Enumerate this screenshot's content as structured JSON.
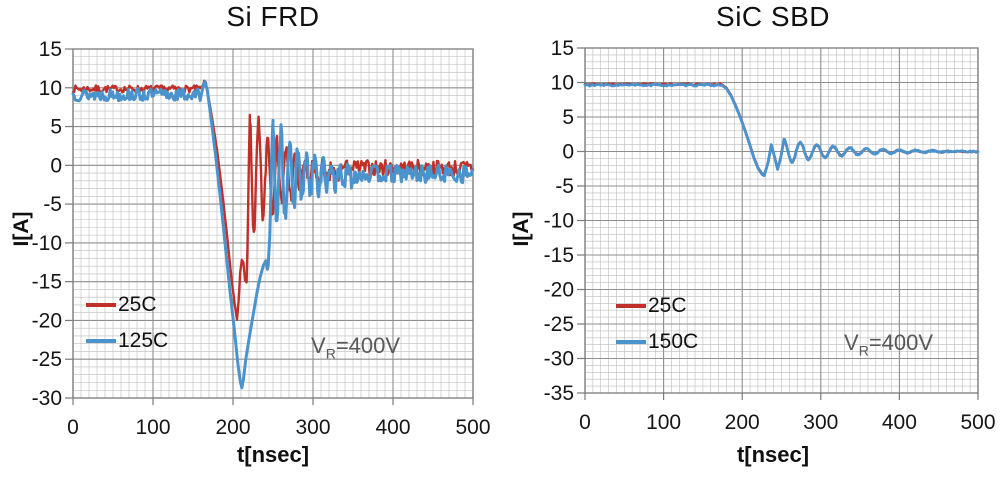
{
  "chart_data": [
    {
      "type": "line",
      "title": "Si FRD",
      "xlabel": "t[nsec]",
      "ylabel": "I[A]",
      "xlim": [
        0,
        500
      ],
      "ylim": [
        -30,
        15
      ],
      "xticks": [
        0,
        100,
        200,
        300,
        400,
        500
      ],
      "yticks": [
        15,
        10,
        5,
        0,
        -5,
        -10,
        -15,
        -20,
        -25,
        -30
      ],
      "minor_step": {
        "x": 10,
        "y": 1
      },
      "grid": true,
      "legend_position": "inside-lower-left",
      "annotation": {
        "pre": "V",
        "sub": "R",
        "post": "=400V"
      },
      "colors": {
        "minor_grid": "#bcbcbc",
        "major_grid": "#8e8e8e",
        "border": "#7a7a7a",
        "annotation": "#595959"
      },
      "readings": {
        "forward_current_A": 10,
        "peak_reverse_current_25C_A": -20,
        "peak_reverse_current_125C_A": -28.7,
        "current_fall_start_ns": 165
      },
      "series": [
        {
          "name": "25C",
          "color": "#c0302a",
          "width": 2.4,
          "seed": 7,
          "segments": [
            {
              "type": "noise",
              "t0": 0,
              "t1": 161,
              "step": 1.5,
              "base": 9.85,
              "amp": 0.45
            },
            {
              "type": "pts",
              "pts": [
                [
                  162,
                  10.1
                ],
                [
                  164,
                  10.9
                ],
                [
                  166,
                  10.7
                ],
                [
                  169,
                  9
                ],
                [
                  174,
                  6
                ],
                [
                  180,
                  2
                ],
                [
                  186,
                  -3
                ],
                [
                  192,
                  -8.5
                ],
                [
                  198,
                  -14.5
                ],
                [
                  202,
                  -17.8
                ],
                [
                  205,
                  -19.9
                ],
                [
                  207,
                  -17.5
                ],
                [
                  209,
                  -13.8
                ],
                [
                  211,
                  -12.2
                ],
                [
                  213,
                  -12.5
                ],
                [
                  215,
                  -14.8
                ],
                [
                  217,
                  -15.1
                ],
                [
                  218,
                  -11
                ],
                [
                  219,
                  -5
                ],
                [
                  220,
                  1.5
                ],
                [
                  221,
                  6.5
                ]
              ]
            },
            {
              "type": "ring",
              "t0": 221,
              "t1": 335,
              "step": 1,
              "base": -1.2,
              "A": 8.0,
              "tau": 46,
              "T": 11.5,
              "phase": 0.3,
              "namp": 1.2
            },
            {
              "type": "noise",
              "t0": 335,
              "t1": 500,
              "step": 1.5,
              "base": -0.35,
              "amp": 1.05
            }
          ]
        },
        {
          "name": "125C",
          "color": "#4a93cc",
          "width": 3,
          "seed": 13,
          "segments": [
            {
              "type": "noise",
              "t0": 0,
              "t1": 160,
              "step": 1.5,
              "base": 9.1,
              "amp": 0.8
            },
            {
              "type": "pts",
              "pts": [
                [
                  161,
                  9.4
                ],
                [
                  163,
                  10.4
                ],
                [
                  165,
                  10.8
                ],
                [
                  168,
                  9.6
                ],
                [
                  172,
                  6.5
                ],
                [
                  178,
                  1.5
                ],
                [
                  184,
                  -4
                ],
                [
                  190,
                  -10
                ],
                [
                  196,
                  -16
                ],
                [
                  202,
                  -21.5
                ],
                [
                  206,
                  -25.5
                ],
                [
                  209,
                  -27.8
                ],
                [
                  211,
                  -28.7
                ],
                [
                  213,
                  -27.6
                ],
                [
                  216,
                  -25
                ],
                [
                  220,
                  -22.4
                ],
                [
                  225,
                  -19.4
                ],
                [
                  230,
                  -16.4
                ],
                [
                  234,
                  -14.4
                ],
                [
                  238,
                  -12.9
                ],
                [
                  241,
                  -12.3
                ],
                [
                  243,
                  -13.4
                ],
                [
                  244,
                  -12.9
                ],
                [
                  246,
                  -9
                ],
                [
                  247,
                  -5
                ],
                [
                  248,
                  -0.5
                ],
                [
                  249,
                  3.5
                ],
                [
                  250,
                  5.8
                ]
              ]
            },
            {
              "type": "ring",
              "t0": 250,
              "t1": 352,
              "step": 1,
              "base": -1.4,
              "A": 7.4,
              "tau": 42,
              "T": 10.5,
              "phase": 0.25,
              "namp": 1.1
            },
            {
              "type": "noise",
              "t0": 352,
              "t1": 500,
              "step": 1.5,
              "base": -1.1,
              "amp": 1.15
            }
          ]
        }
      ]
    },
    {
      "type": "line",
      "title": "SiC SBD",
      "xlabel": "t[nsec]",
      "ylabel": "I[A]",
      "xlim": [
        0,
        500
      ],
      "ylim": [
        -35,
        15
      ],
      "xticks": [
        0,
        100,
        200,
        300,
        400,
        500
      ],
      "yticks": [
        15,
        10,
        5,
        0,
        -5,
        -10,
        -15,
        -20,
        -25,
        -30,
        -35
      ],
      "minor_step": {
        "x": 10,
        "y": 1
      },
      "grid": true,
      "legend_position": "inside-lower-left",
      "annotation": {
        "pre": "V",
        "sub": "R",
        "post": "=400V"
      },
      "colors": {
        "minor_grid": "#bcbcbc",
        "major_grid": "#8e8e8e",
        "border": "#7a7a7a",
        "annotation": "#595959"
      },
      "readings": {
        "forward_current_A": 9.7,
        "peak_reverse_current_A": -3.4,
        "current_fall_start_ns": 175,
        "note_visible_traces": "25C and 150C curves overlap almost completely"
      },
      "series": [
        {
          "name": "25C",
          "color": "#c0302a",
          "width": 2.6,
          "seed": 21,
          "segments": [
            {
              "type": "noise",
              "t0": 0,
              "t1": 172,
              "step": 2,
              "base": 9.75,
              "amp": 0.12
            },
            {
              "type": "pts",
              "pts": [
                [
                  174,
                  9.7
                ],
                [
                  180,
                  9.2
                ],
                [
                  186,
                  8.1
                ],
                [
                  192,
                  6.6
                ],
                [
                  198,
                  4.9
                ],
                [
                  204,
                  3.0
                ],
                [
                  210,
                  0.9
                ],
                [
                  215,
                  -0.9
                ],
                [
                  220,
                  -2.3
                ],
                [
                  225,
                  -3.2
                ],
                [
                  228,
                  -3.4
                ],
                [
                  233,
                  -1.6
                ],
                [
                  237,
                  0.9
                ],
                [
                  241,
                  -0.7
                ],
                [
                  245,
                  -2.5
                ],
                [
                  249,
                  -0.9
                ],
                [
                  253,
                  1.6
                ]
              ]
            },
            {
              "type": "ring",
              "t0": 253,
              "t1": 462,
              "step": 1,
              "base": 0,
              "A": 1.7,
              "tau": 70,
              "T": 21,
              "phase": 0,
              "namp": 0.07
            },
            {
              "type": "noise",
              "t0": 462,
              "t1": 500,
              "step": 2,
              "base": 0,
              "amp": 0.08
            }
          ]
        },
        {
          "name": "150C",
          "color": "#4a93cc",
          "width": 2.8,
          "seed": 33,
          "segments": [
            {
              "type": "noise",
              "t0": 0,
              "t1": 172,
              "step": 2,
              "base": 9.62,
              "amp": 0.14
            },
            {
              "type": "pts",
              "pts": [
                [
                  174,
                  9.6
                ],
                [
                  180,
                  9.1
                ],
                [
                  186,
                  8.0
                ],
                [
                  192,
                  6.5
                ],
                [
                  198,
                  4.8
                ],
                [
                  204,
                  2.9
                ],
                [
                  210,
                  0.8
                ],
                [
                  215,
                  -1.0
                ],
                [
                  220,
                  -2.4
                ],
                [
                  225,
                  -3.3
                ],
                [
                  228,
                  -3.5
                ],
                [
                  233,
                  -1.6
                ],
                [
                  237,
                  1.0
                ],
                [
                  241,
                  -0.7
                ],
                [
                  245,
                  -2.6
                ],
                [
                  249,
                  -0.9
                ],
                [
                  253,
                  1.7
                ]
              ]
            },
            {
              "type": "ring",
              "t0": 253,
              "t1": 462,
              "step": 1,
              "base": 0,
              "A": 1.8,
              "tau": 72,
              "T": 21,
              "phase": 0,
              "namp": 0.1
            },
            {
              "type": "noise",
              "t0": 462,
              "t1": 500,
              "step": 2,
              "base": 0,
              "amp": 0.1
            }
          ]
        }
      ]
    }
  ]
}
